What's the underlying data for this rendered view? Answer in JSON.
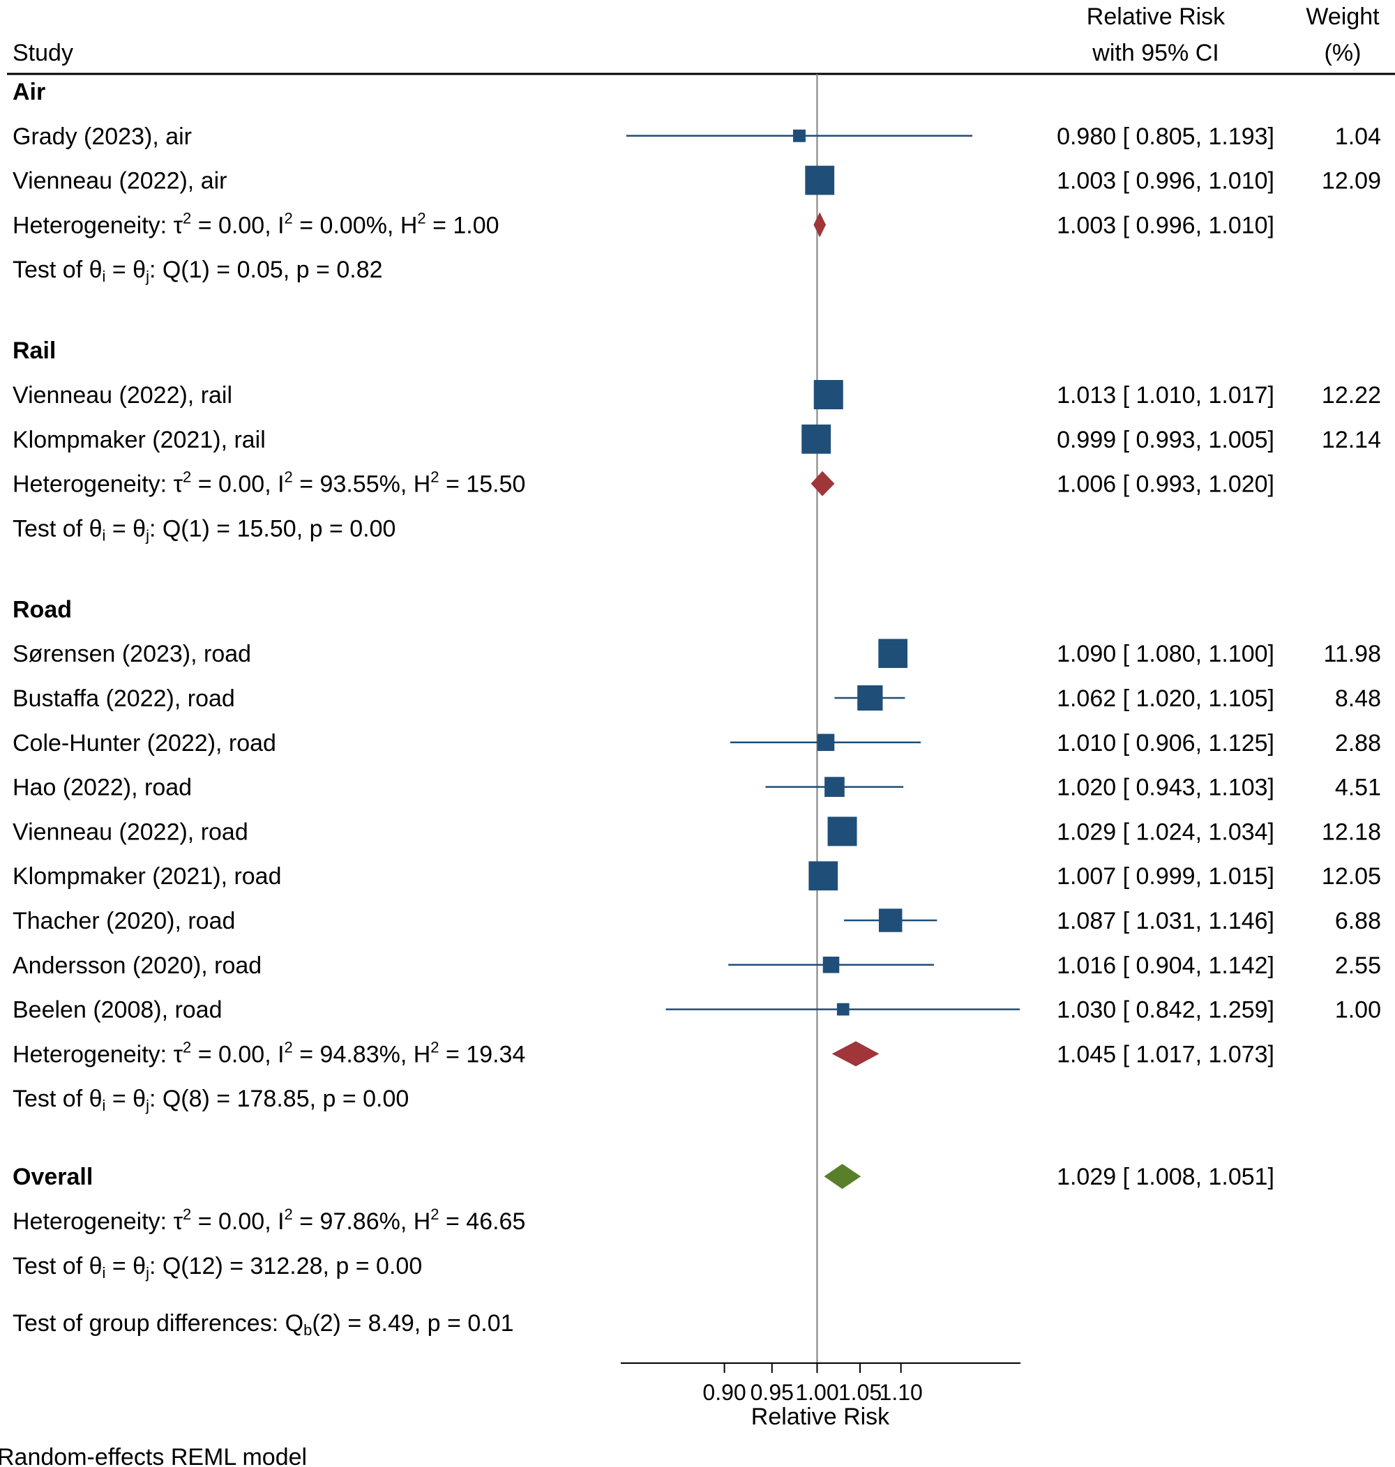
{
  "headers": {
    "study": "Study",
    "effect_line1": "Relative Risk",
    "effect_line2": "with 95% CI",
    "weight_line1": "Weight",
    "weight_line2": "(%)"
  },
  "footnote": "Random-effects REML model",
  "colors": {
    "study_marker": "#1f4e79",
    "subgroup_diamond": "#a0353a",
    "overall_diamond": "#5a7f2b",
    "reference_line": "#808080",
    "axis": "#000000"
  },
  "chart_data": {
    "type": "forest",
    "xlabel": "Relative Risk",
    "xticks": [
      0.9,
      0.95,
      1.0,
      1.05,
      1.1
    ],
    "xtick_labels": [
      "0.90",
      "0.95",
      "1.00",
      "1.05",
      "1.10"
    ],
    "reference_value": 1.0,
    "groups": [
      {
        "name": "Air",
        "studies": [
          {
            "label": "Grady (2023), air",
            "rr": 0.98,
            "lo": 0.805,
            "hi": 1.193,
            "ci_text": "0.980 [ 0.805,  1.193]",
            "weight": "1.04"
          },
          {
            "label": "Vienneau (2022), air",
            "rr": 1.003,
            "lo": 0.996,
            "hi": 1.01,
            "ci_text": "1.003 [ 0.996,  1.010]",
            "weight": "12.09"
          }
        ],
        "summary": {
          "rr": 1.003,
          "lo": 0.996,
          "hi": 1.01,
          "ci_text": "1.003 [ 0.996,  1.010]"
        },
        "heterogeneity": {
          "tau2": "0.00",
          "i2": "0.00%",
          "h2": "1.00"
        },
        "test": {
          "q": "Q(1) = 0.05, p = 0.82"
        }
      },
      {
        "name": "Rail",
        "studies": [
          {
            "label": "Vienneau (2022), rail",
            "rr": 1.013,
            "lo": 1.01,
            "hi": 1.017,
            "ci_text": "1.013 [ 1.010,  1.017]",
            "weight": "12.22"
          },
          {
            "label": "Klompmaker (2021), rail",
            "rr": 0.999,
            "lo": 0.993,
            "hi": 1.005,
            "ci_text": "0.999 [ 0.993,  1.005]",
            "weight": "12.14"
          }
        ],
        "summary": {
          "rr": 1.006,
          "lo": 0.993,
          "hi": 1.02,
          "ci_text": "1.006 [ 0.993,  1.020]"
        },
        "heterogeneity": {
          "tau2": "0.00",
          "i2": "93.55%",
          "h2": "15.50"
        },
        "test": {
          "q": "Q(1) = 15.50, p = 0.00"
        }
      },
      {
        "name": "Road",
        "studies": [
          {
            "label": "Sørensen (2023), road",
            "rr": 1.09,
            "lo": 1.08,
            "hi": 1.1,
            "ci_text": "1.090 [ 1.080,  1.100]",
            "weight": "11.98"
          },
          {
            "label": "Bustaffa (2022), road",
            "rr": 1.062,
            "lo": 1.02,
            "hi": 1.105,
            "ci_text": "1.062 [ 1.020,  1.105]",
            "weight": "8.48"
          },
          {
            "label": "Cole-Hunter (2022), road",
            "rr": 1.01,
            "lo": 0.906,
            "hi": 1.125,
            "ci_text": "1.010 [ 0.906,  1.125]",
            "weight": "2.88"
          },
          {
            "label": "Hao (2022), road",
            "rr": 1.02,
            "lo": 0.943,
            "hi": 1.103,
            "ci_text": "1.020 [ 0.943,  1.103]",
            "weight": "4.51"
          },
          {
            "label": "Vienneau (2022), road",
            "rr": 1.029,
            "lo": 1.024,
            "hi": 1.034,
            "ci_text": "1.029 [ 1.024,  1.034]",
            "weight": "12.18"
          },
          {
            "label": "Klompmaker (2021), road",
            "rr": 1.007,
            "lo": 0.999,
            "hi": 1.015,
            "ci_text": "1.007 [ 0.999,  1.015]",
            "weight": "12.05"
          },
          {
            "label": "Thacher (2020), road",
            "rr": 1.087,
            "lo": 1.031,
            "hi": 1.146,
            "ci_text": "1.087 [ 1.031,  1.146]",
            "weight": "6.88"
          },
          {
            "label": "Andersson (2020), road",
            "rr": 1.016,
            "lo": 0.904,
            "hi": 1.142,
            "ci_text": "1.016 [ 0.904,  1.142]",
            "weight": "2.55"
          },
          {
            "label": "Beelen (2008), road",
            "rr": 1.03,
            "lo": 0.842,
            "hi": 1.259,
            "ci_text": "1.030 [ 0.842,  1.259]",
            "weight": "1.00"
          }
        ],
        "summary": {
          "rr": 1.045,
          "lo": 1.017,
          "hi": 1.073,
          "ci_text": "1.045 [ 1.017,  1.073]"
        },
        "heterogeneity": {
          "tau2": "0.00",
          "i2": "94.83%",
          "h2": "19.34"
        },
        "test": {
          "q": "Q(8) = 178.85, p = 0.00"
        }
      }
    ],
    "overall": {
      "name": "Overall",
      "rr": 1.029,
      "lo": 1.008,
      "hi": 1.051,
      "ci_text": "1.029 [ 1.008,  1.051]",
      "heterogeneity": {
        "tau2": "0.00",
        "i2": "97.86%",
        "h2": "46.65"
      },
      "test": {
        "q": "Q(12) = 312.28, p = 0.00"
      }
    },
    "group_difference": {
      "prefix": "Test of group differences: Q",
      "sub": "b",
      "rest": "(2) = 8.49, p = 0.01"
    }
  }
}
